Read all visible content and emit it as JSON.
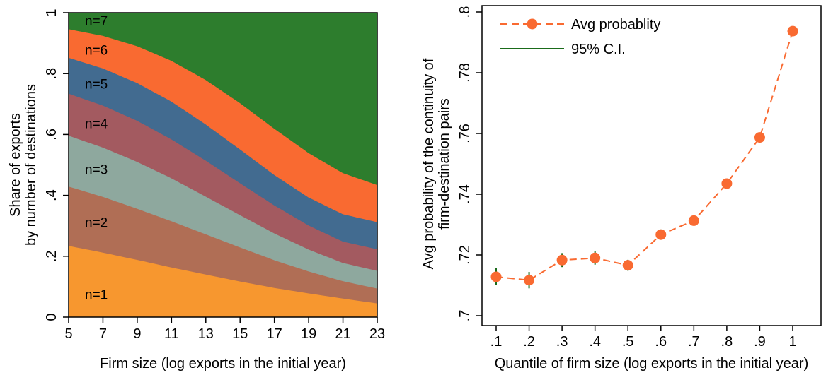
{
  "chart_data": [
    {
      "type": "area",
      "stacked": true,
      "xlabel": "Firm size (log exports in the initial year)",
      "ylabel": [
        "Share of exports",
        "by number of destinations"
      ],
      "xlim": [
        5,
        23
      ],
      "ylim": [
        0,
        1
      ],
      "x_ticks": [
        5,
        7,
        9,
        11,
        13,
        15,
        17,
        19,
        21,
        23
      ],
      "y_ticks": [
        0,
        0.2,
        0.4,
        0.6,
        0.8,
        1
      ],
      "y_tick_labels": [
        "0",
        ".2",
        ".4",
        ".6",
        ".8",
        "1"
      ],
      "x": [
        5,
        7,
        9,
        11,
        13,
        15,
        17,
        19,
        21,
        23
      ],
      "series": [
        {
          "name": "n=1",
          "color": "#f7972f",
          "upper": [
            0.235,
            0.213,
            0.189,
            0.164,
            0.141,
            0.118,
            0.097,
            0.079,
            0.062,
            0.046
          ]
        },
        {
          "name": "n=2",
          "color": "#b06e55",
          "upper": [
            0.43,
            0.396,
            0.357,
            0.316,
            0.273,
            0.23,
            0.188,
            0.151,
            0.119,
            0.095
          ]
        },
        {
          "name": "n=3",
          "color": "#8ea89e",
          "upper": [
            0.597,
            0.558,
            0.511,
            0.457,
            0.397,
            0.336,
            0.276,
            0.223,
            0.179,
            0.153
          ]
        },
        {
          "name": "n=4",
          "color": "#a35a60",
          "upper": [
            0.735,
            0.696,
            0.646,
            0.585,
            0.515,
            0.441,
            0.368,
            0.302,
            0.249,
            0.224
          ]
        },
        {
          "name": "n=5",
          "color": "#426b90",
          "upper": [
            0.853,
            0.818,
            0.77,
            0.709,
            0.634,
            0.552,
            0.468,
            0.394,
            0.339,
            0.313
          ]
        },
        {
          "name": "n=6",
          "color": "#f96a31",
          "upper": [
            0.947,
            0.925,
            0.891,
            0.843,
            0.78,
            0.704,
            0.62,
            0.54,
            0.474,
            0.435
          ]
        },
        {
          "name": "n=7",
          "color": "#2d7d2d",
          "upper": [
            1,
            1,
            1,
            1,
            1,
            1,
            1,
            1,
            1,
            1
          ]
        }
      ]
    },
    {
      "type": "line",
      "xlabel": "Quantile of firm size (log exports in the initial year)",
      "ylabel": [
        "Avg probability of the continuity of",
        "firm-destination pairs"
      ],
      "xlim": [
        0.1,
        1
      ],
      "ylim": [
        0.7,
        0.8
      ],
      "x_ticks": [
        0.1,
        0.2,
        0.3,
        0.4,
        0.5,
        0.6,
        0.7,
        0.8,
        0.9,
        1
      ],
      "x_tick_labels": [
        ".1",
        ".2",
        ".3",
        ".4",
        ".5",
        ".6",
        ".7",
        ".8",
        ".9",
        "1"
      ],
      "y_ticks": [
        0.7,
        0.72,
        0.74,
        0.76,
        0.78,
        0.8
      ],
      "y_tick_labels": [
        ".7",
        ".72",
        ".74",
        ".76",
        ".78",
        ".8"
      ],
      "x": [
        0.1,
        0.2,
        0.3,
        0.4,
        0.5,
        0.6,
        0.7,
        0.8,
        0.9,
        1
      ],
      "series": [
        {
          "name": "Avg probablity",
          "color": "#f96a31",
          "values": [
            0.7128,
            0.7117,
            0.7183,
            0.719,
            0.7166,
            0.7267,
            0.7313,
            0.7435,
            0.7587,
            0.7937
          ]
        },
        {
          "name": "95% C.I.",
          "color": "#1a6b1a",
          "lower": [
            0.71,
            0.709,
            0.716,
            0.7168,
            0.7148,
            0.725,
            0.7298,
            0.7421,
            0.7574,
            0.7927
          ],
          "upper": [
            0.7156,
            0.7144,
            0.7206,
            0.7212,
            0.7184,
            0.7284,
            0.7328,
            0.7449,
            0.76,
            0.7947
          ]
        }
      ],
      "legend": "top-left"
    }
  ]
}
